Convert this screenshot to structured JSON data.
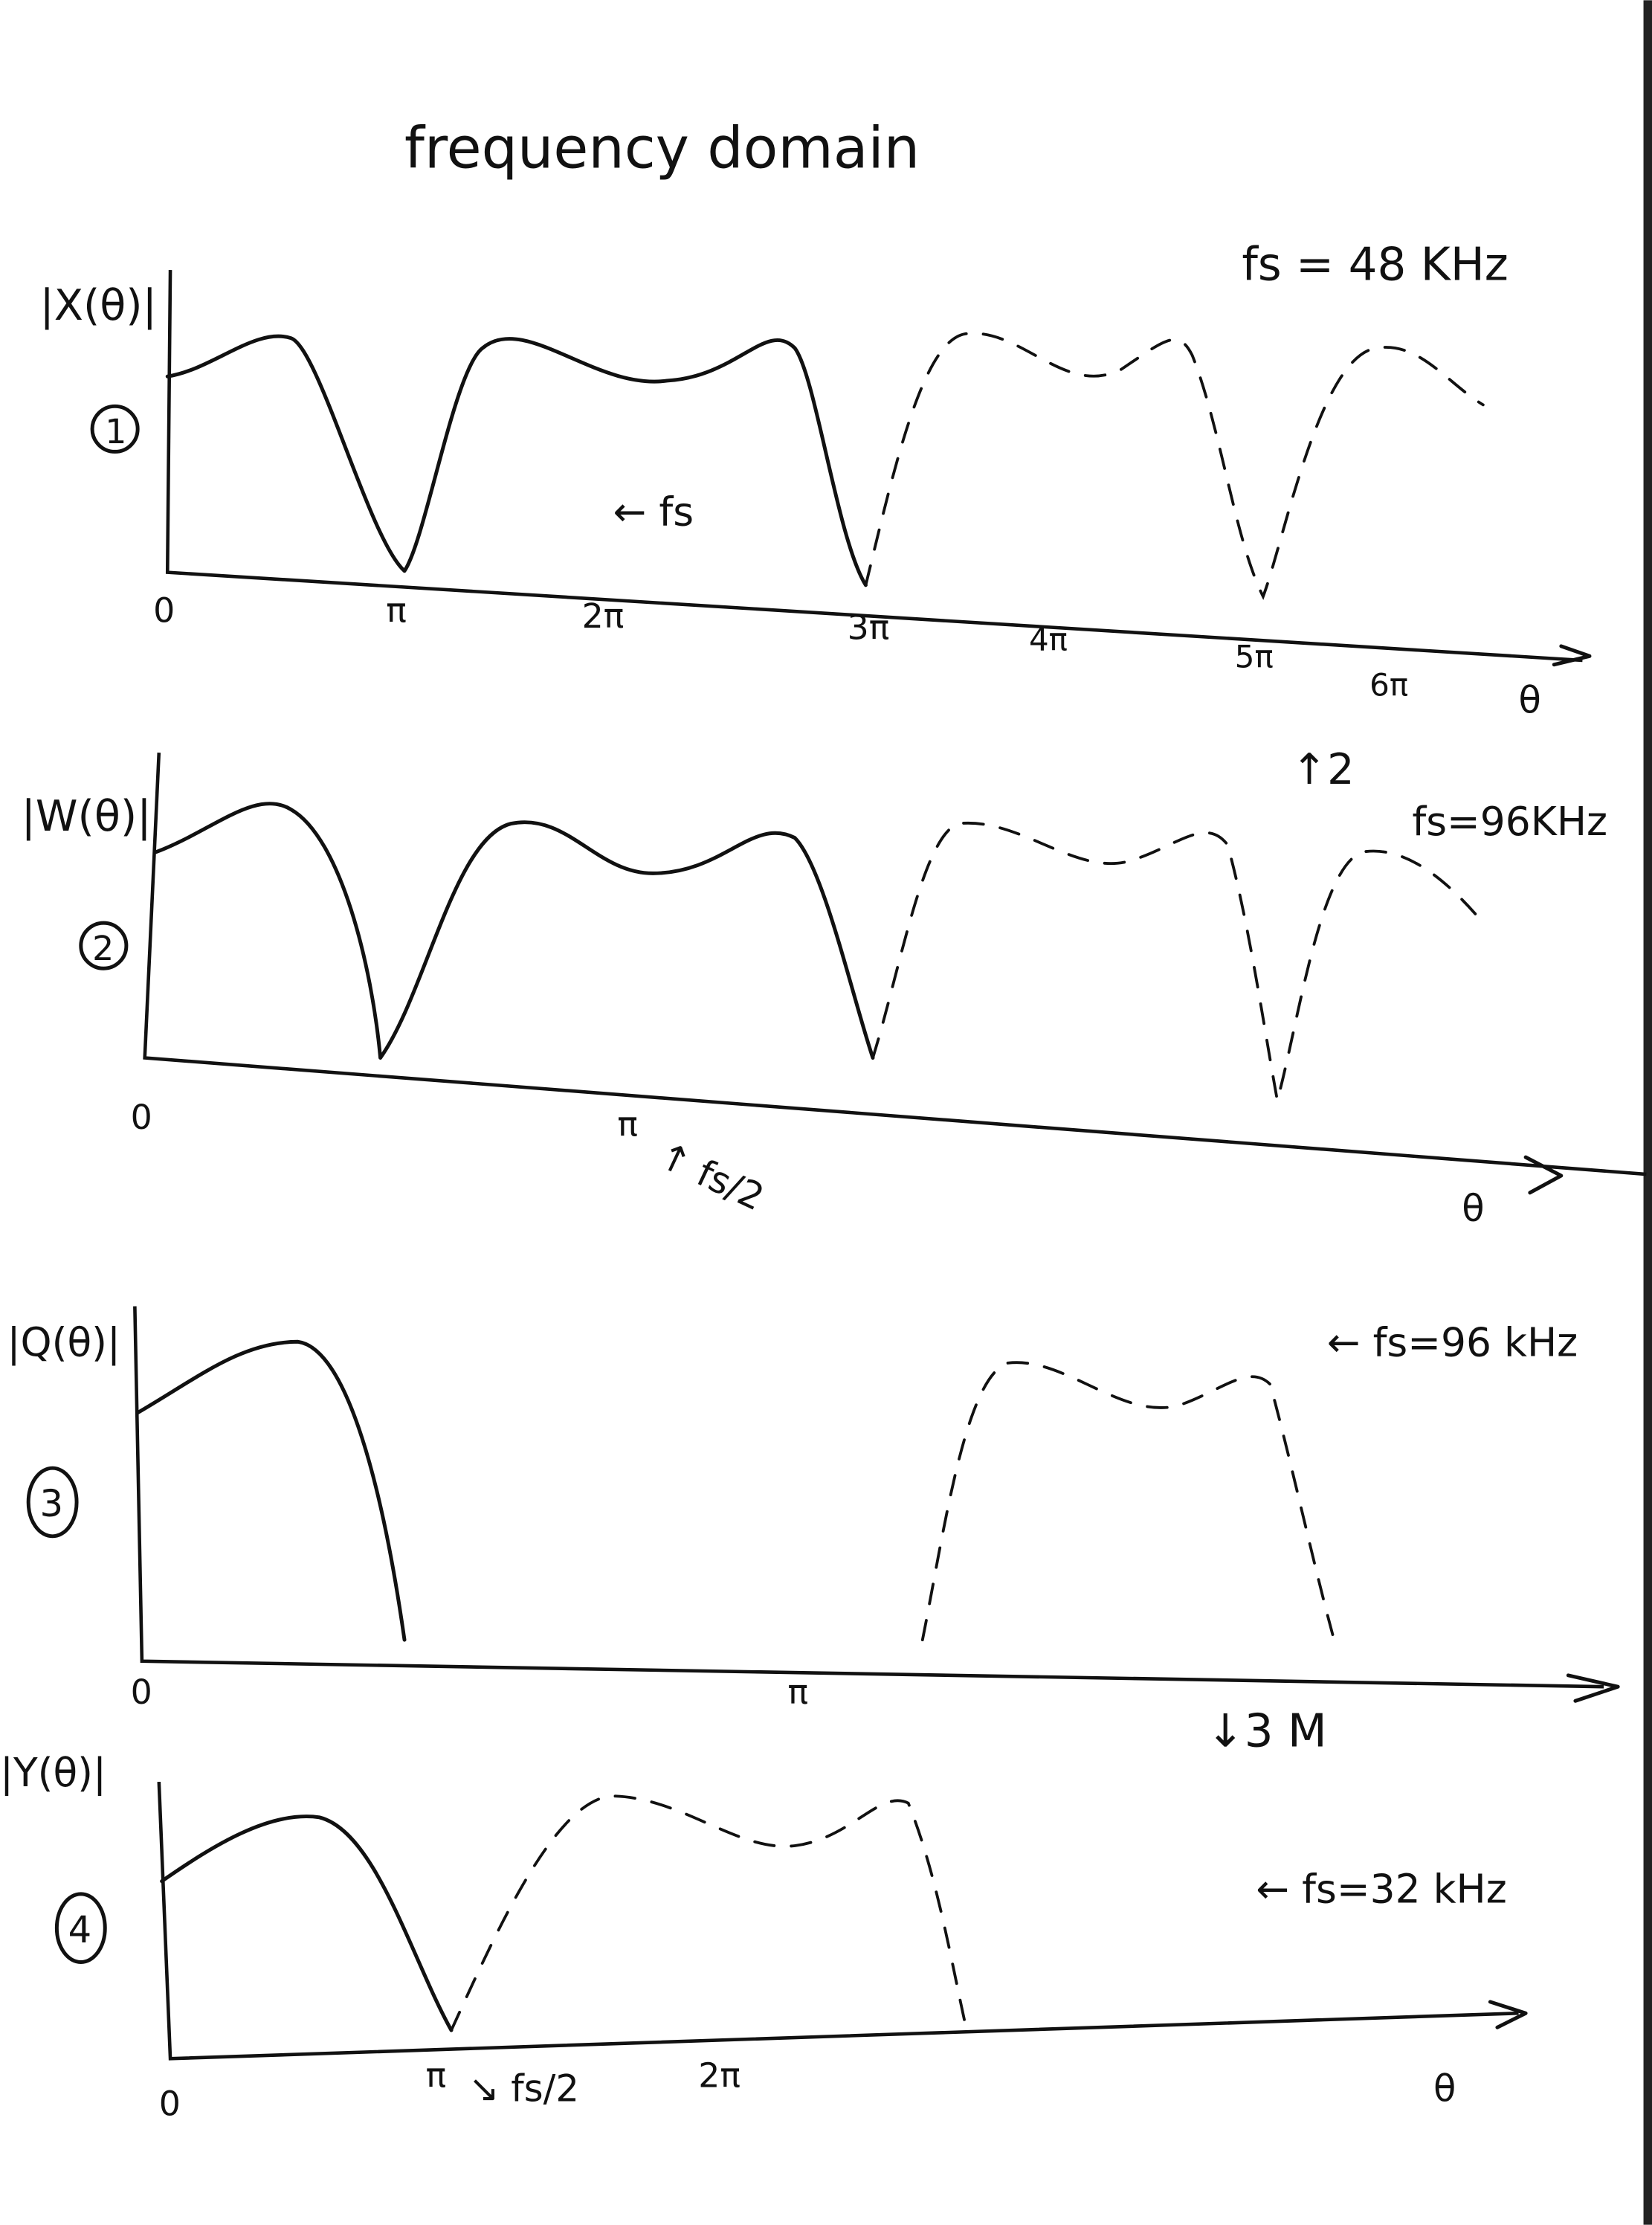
{
  "title": "frequency domain",
  "panels": [
    {
      "number": "1",
      "ylabel": "|X(θ)|",
      "fs": "fs = 48 KHz",
      "note": "← fs",
      "ticks": [
        "0",
        "π",
        "2π",
        "3π",
        "4π",
        "5π",
        "6π"
      ],
      "xlabel": "θ",
      "op": "↑2"
    },
    {
      "number": "2",
      "ylabel": "|W(θ)|",
      "fs": "fs=96KHz",
      "ticks": [
        "0",
        "π"
      ],
      "note": "↑ fs/2",
      "xlabel": "θ"
    },
    {
      "number": "3",
      "ylabel": "|Q(θ)|",
      "fs": "← fs=96 kHz",
      "ticks": [
        "0",
        "π"
      ],
      "op": "↓3 M"
    },
    {
      "number": "4",
      "ylabel": "|Y(θ)|",
      "fs": "← fs=32 kHz",
      "ticks": [
        "0",
        "π",
        "2π"
      ],
      "note": "↘ fs/2",
      "xlabel": "θ"
    }
  ]
}
